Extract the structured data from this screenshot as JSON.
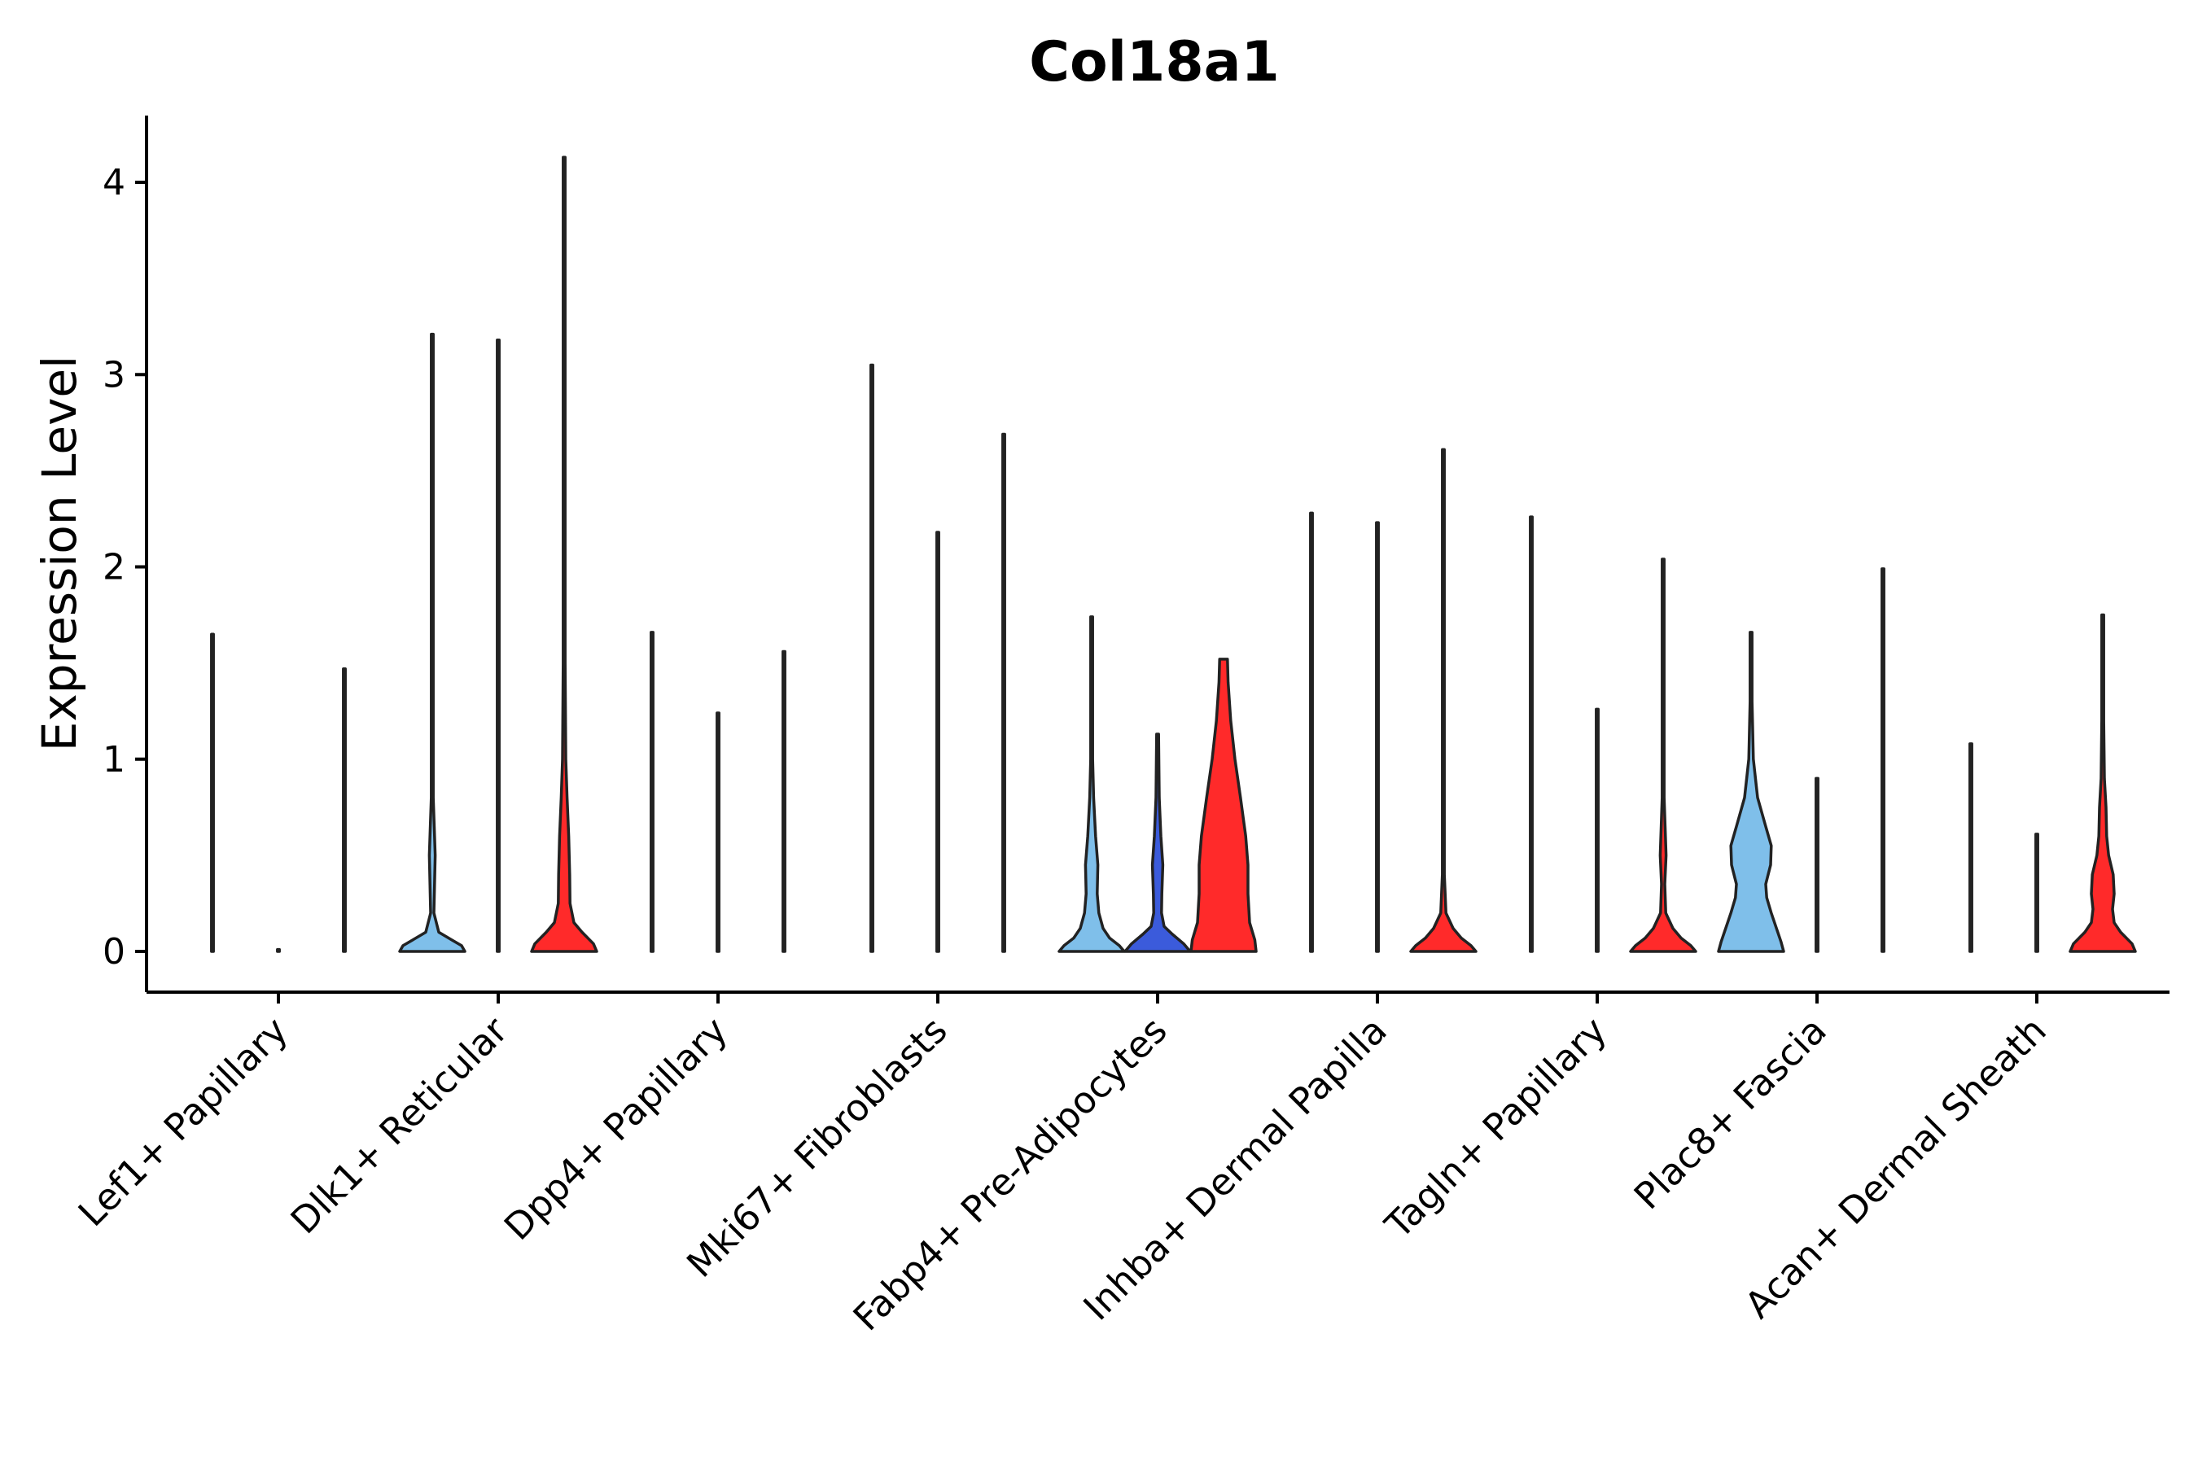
{
  "chart_data": {
    "type": "violin",
    "title": "Col18a1",
    "xlabel": "",
    "ylabel": "Expression Level",
    "ylim": [
      -0.2,
      4.3
    ],
    "yticks": [
      0,
      1,
      2,
      3,
      4
    ],
    "grid": false,
    "legend": "none",
    "group_colors": {
      "light_blue": "#7fbfea",
      "blue": "#3b5bdb",
      "red": "#ff2a2a",
      "outline": "#222222"
    },
    "categories": [
      "Lef1+ Papillary",
      "Dlk1+ Reticular",
      "Dpp4+ Papillary",
      "Mki67+ Fibroblasts",
      "Fabp4+ Pre-Adipocytes",
      "Inhba+ Dermal Papilla",
      "Tagln+ Papillary",
      "Plac8+ Fascia",
      "Acan+ Dermal Sheath"
    ],
    "violins": [
      {
        "category": 0,
        "sub": 0,
        "color": "light_blue",
        "max": 1.65,
        "profile": [
          [
            0,
            0.02
          ],
          [
            0.02,
            0.008
          ],
          [
            0.05,
            0.003
          ],
          [
            1.65,
            0.002
          ]
        ]
      },
      {
        "category": 0,
        "sub": 1,
        "color": "light_blue",
        "max": 0.0,
        "profile": [
          [
            0,
            0.02
          ],
          [
            0.01,
            0.005
          ]
        ]
      },
      {
        "category": 0,
        "sub": 2,
        "color": "red",
        "max": 1.47,
        "profile": [
          [
            0,
            0.02
          ],
          [
            0.02,
            0.008
          ],
          [
            0.05,
            0.003
          ],
          [
            1.47,
            0.002
          ]
        ]
      },
      {
        "category": 1,
        "sub": 0,
        "color": "light_blue",
        "max": 3.21,
        "profile": [
          [
            0,
            1
          ],
          [
            0.03,
            0.9
          ],
          [
            0.06,
            0.6
          ],
          [
            0.1,
            0.2
          ],
          [
            0.2,
            0.05
          ],
          [
            0.35,
            0.07
          ],
          [
            0.5,
            0.09
          ],
          [
            0.6,
            0.07
          ],
          [
            0.8,
            0.03
          ],
          [
            1.2,
            0.01
          ],
          [
            3.21,
            0.004
          ]
        ]
      },
      {
        "category": 1,
        "sub": 1,
        "color": "blue",
        "max": 3.18,
        "profile": [
          [
            0,
            0.02
          ],
          [
            0.02,
            0.008
          ],
          [
            0.05,
            0.003
          ],
          [
            3.18,
            0.002
          ]
        ]
      },
      {
        "category": 1,
        "sub": 2,
        "color": "red",
        "max": 4.13,
        "profile": [
          [
            0,
            1
          ],
          [
            0.04,
            0.9
          ],
          [
            0.1,
            0.55
          ],
          [
            0.15,
            0.3
          ],
          [
            0.25,
            0.18
          ],
          [
            0.4,
            0.17
          ],
          [
            0.6,
            0.14
          ],
          [
            0.8,
            0.09
          ],
          [
            1.0,
            0.05
          ],
          [
            1.5,
            0.02
          ],
          [
            4.13,
            0.004
          ]
        ]
      },
      {
        "category": 2,
        "sub": 0,
        "color": "light_blue",
        "max": 1.66,
        "profile": [
          [
            0,
            0.02
          ],
          [
            0.02,
            0.008
          ],
          [
            0.05,
            0.003
          ],
          [
            1.66,
            0.002
          ]
        ]
      },
      {
        "category": 2,
        "sub": 1,
        "color": "blue",
        "max": 1.24,
        "profile": [
          [
            0,
            0.02
          ],
          [
            0.02,
            0.008
          ],
          [
            0.05,
            0.003
          ],
          [
            1.24,
            0.002
          ]
        ]
      },
      {
        "category": 2,
        "sub": 2,
        "color": "red",
        "max": 1.56,
        "profile": [
          [
            0,
            0.02
          ],
          [
            0.02,
            0.008
          ],
          [
            0.05,
            0.003
          ],
          [
            1.56,
            0.002
          ]
        ]
      },
      {
        "category": 3,
        "sub": 0,
        "color": "light_blue",
        "max": 3.05,
        "profile": [
          [
            0,
            0.02
          ],
          [
            0.02,
            0.008
          ],
          [
            0.05,
            0.003
          ],
          [
            3.05,
            0.002
          ]
        ]
      },
      {
        "category": 3,
        "sub": 1,
        "color": "blue",
        "max": 2.18,
        "profile": [
          [
            0,
            0.02
          ],
          [
            0.02,
            0.008
          ],
          [
            0.05,
            0.003
          ],
          [
            2.18,
            0.002
          ]
        ]
      },
      {
        "category": 3,
        "sub": 2,
        "color": "red",
        "max": 2.69,
        "profile": [
          [
            0,
            0.02
          ],
          [
            0.02,
            0.008
          ],
          [
            0.05,
            0.003
          ],
          [
            2.69,
            0.002
          ]
        ]
      },
      {
        "category": 4,
        "sub": 0,
        "color": "light_blue",
        "max": 1.74,
        "profile": [
          [
            0,
            1
          ],
          [
            0.03,
            0.85
          ],
          [
            0.07,
            0.55
          ],
          [
            0.12,
            0.35
          ],
          [
            0.2,
            0.22
          ],
          [
            0.3,
            0.17
          ],
          [
            0.45,
            0.19
          ],
          [
            0.6,
            0.12
          ],
          [
            0.8,
            0.06
          ],
          [
            1.0,
            0.03
          ],
          [
            1.3,
            0.015
          ],
          [
            1.74,
            0.005
          ]
        ]
      },
      {
        "category": 4,
        "sub": 1,
        "color": "blue",
        "max": 1.13,
        "profile": [
          [
            0,
            1
          ],
          [
            0.04,
            0.8
          ],
          [
            0.09,
            0.45
          ],
          [
            0.13,
            0.2
          ],
          [
            0.2,
            0.12
          ],
          [
            0.3,
            0.13
          ],
          [
            0.45,
            0.16
          ],
          [
            0.6,
            0.1
          ],
          [
            0.8,
            0.05
          ],
          [
            1.13,
            0.01
          ]
        ]
      },
      {
        "category": 4,
        "sub": 2,
        "color": "red",
        "max": 1.52,
        "profile": [
          [
            0,
            1
          ],
          [
            0.06,
            0.96
          ],
          [
            0.15,
            0.8
          ],
          [
            0.3,
            0.75
          ],
          [
            0.45,
            0.75
          ],
          [
            0.6,
            0.68
          ],
          [
            0.8,
            0.52
          ],
          [
            1.0,
            0.35
          ],
          [
            1.2,
            0.22
          ],
          [
            1.4,
            0.14
          ],
          [
            1.52,
            0.12
          ]
        ]
      },
      {
        "category": 5,
        "sub": 0,
        "color": "light_blue",
        "max": 2.28,
        "profile": [
          [
            0,
            0.02
          ],
          [
            0.02,
            0.008
          ],
          [
            0.05,
            0.003
          ],
          [
            2.28,
            0.002
          ]
        ]
      },
      {
        "category": 5,
        "sub": 1,
        "color": "blue",
        "max": 2.23,
        "profile": [
          [
            0,
            0.02
          ],
          [
            0.02,
            0.008
          ],
          [
            0.05,
            0.003
          ],
          [
            2.23,
            0.002
          ]
        ]
      },
      {
        "category": 5,
        "sub": 2,
        "color": "red",
        "max": 2.61,
        "profile": [
          [
            0,
            1
          ],
          [
            0.03,
            0.85
          ],
          [
            0.07,
            0.55
          ],
          [
            0.12,
            0.3
          ],
          [
            0.2,
            0.08
          ],
          [
            0.4,
            0.03
          ],
          [
            0.6,
            0.025
          ],
          [
            1.2,
            0.02
          ],
          [
            2.61,
            0.004
          ]
        ]
      },
      {
        "category": 6,
        "sub": 0,
        "color": "light_blue",
        "max": 2.26,
        "profile": [
          [
            0,
            0.02
          ],
          [
            0.02,
            0.008
          ],
          [
            0.05,
            0.003
          ],
          [
            2.26,
            0.002
          ]
        ]
      },
      {
        "category": 6,
        "sub": 1,
        "color": "blue",
        "max": 1.26,
        "profile": [
          [
            0,
            0.02
          ],
          [
            0.02,
            0.008
          ],
          [
            0.05,
            0.003
          ],
          [
            1.26,
            0.002
          ]
        ]
      },
      {
        "category": 6,
        "sub": 2,
        "color": "red",
        "max": 2.04,
        "profile": [
          [
            0,
            1
          ],
          [
            0.03,
            0.85
          ],
          [
            0.07,
            0.55
          ],
          [
            0.12,
            0.3
          ],
          [
            0.2,
            0.08
          ],
          [
            0.35,
            0.05
          ],
          [
            0.5,
            0.09
          ],
          [
            0.65,
            0.06
          ],
          [
            0.8,
            0.03
          ],
          [
            1.1,
            0.015
          ],
          [
            2.04,
            0.004
          ]
        ]
      },
      {
        "category": 7,
        "sub": 0,
        "color": "light_blue",
        "max": 1.66,
        "profile": [
          [
            0,
            1
          ],
          [
            0.05,
            0.92
          ],
          [
            0.12,
            0.78
          ],
          [
            0.2,
            0.62
          ],
          [
            0.28,
            0.48
          ],
          [
            0.35,
            0.45
          ],
          [
            0.45,
            0.6
          ],
          [
            0.55,
            0.62
          ],
          [
            0.65,
            0.45
          ],
          [
            0.8,
            0.2
          ],
          [
            1.0,
            0.07
          ],
          [
            1.3,
            0.02
          ],
          [
            1.66,
            0.005
          ]
        ]
      },
      {
        "category": 7,
        "sub": 1,
        "color": "blue",
        "max": 0.9,
        "profile": [
          [
            0,
            0.02
          ],
          [
            0.02,
            0.008
          ],
          [
            0.05,
            0.003
          ],
          [
            0.9,
            0.002
          ]
        ]
      },
      {
        "category": 7,
        "sub": 2,
        "color": "red",
        "max": 1.99,
        "profile": [
          [
            0,
            0.02
          ],
          [
            0.02,
            0.008
          ],
          [
            0.05,
            0.003
          ],
          [
            1.99,
            0.002
          ]
        ]
      },
      {
        "category": 8,
        "sub": 0,
        "color": "light_blue",
        "max": 1.08,
        "profile": [
          [
            0,
            0.02
          ],
          [
            0.02,
            0.008
          ],
          [
            0.05,
            0.003
          ],
          [
            1.08,
            0.002
          ]
        ]
      },
      {
        "category": 8,
        "sub": 1,
        "color": "blue",
        "max": 0.61,
        "profile": [
          [
            0,
            0.02
          ],
          [
            0.02,
            0.008
          ],
          [
            0.05,
            0.003
          ],
          [
            0.61,
            0.002
          ]
        ]
      },
      {
        "category": 8,
        "sub": 2,
        "color": "red",
        "max": 1.75,
        "profile": [
          [
            0,
            1
          ],
          [
            0.04,
            0.9
          ],
          [
            0.1,
            0.55
          ],
          [
            0.15,
            0.35
          ],
          [
            0.22,
            0.3
          ],
          [
            0.3,
            0.35
          ],
          [
            0.4,
            0.32
          ],
          [
            0.5,
            0.18
          ],
          [
            0.6,
            0.12
          ],
          [
            0.75,
            0.1
          ],
          [
            0.9,
            0.05
          ],
          [
            1.2,
            0.02
          ],
          [
            1.75,
            0.005
          ]
        ]
      }
    ]
  }
}
